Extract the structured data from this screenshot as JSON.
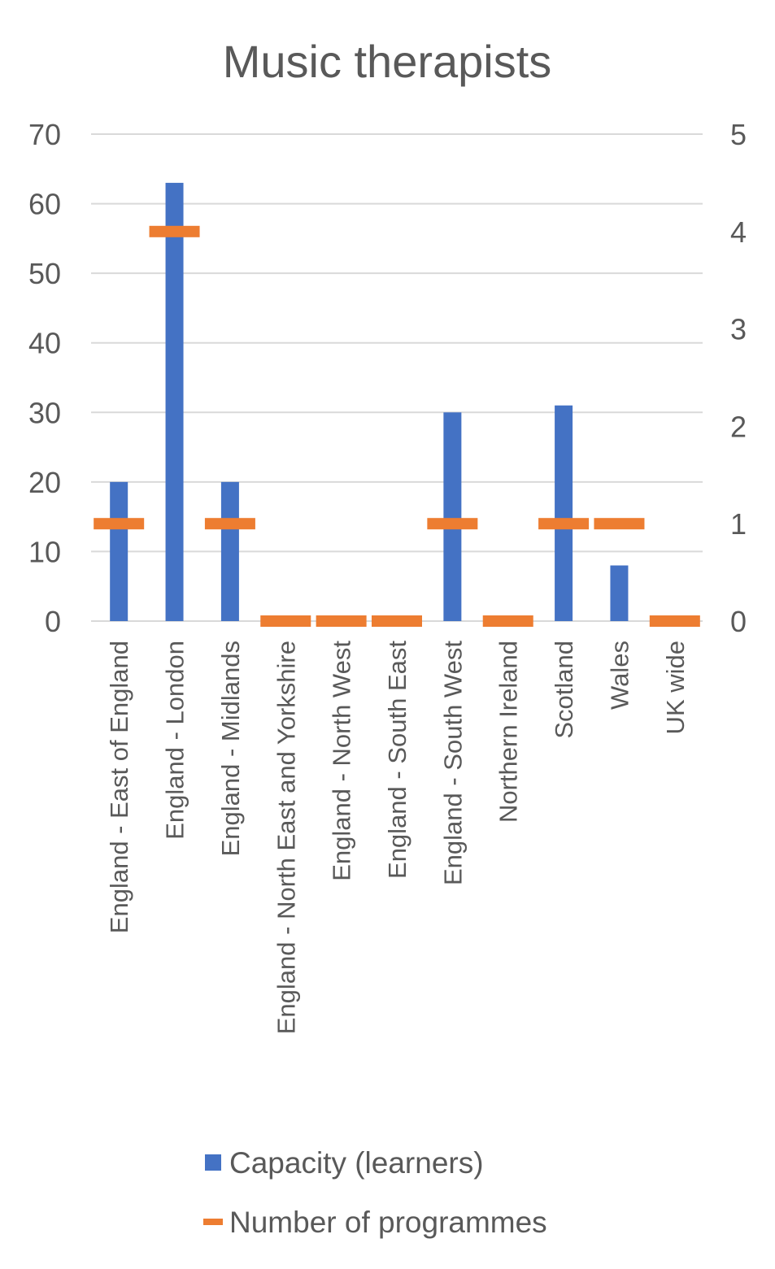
{
  "chart_data": {
    "type": "bar",
    "title": "Music therapists",
    "categories": [
      "England - East of England",
      "England - London",
      "England - Midlands",
      "England - North East and Yorkshire",
      "England - North West",
      "England - South East",
      "England - South West",
      "Northern Ireland",
      "Scotland",
      "Wales",
      "UK wide"
    ],
    "series": [
      {
        "name": "Capacity (learners)",
        "axis": "primary",
        "mark": "bar",
        "color": "#4472c4",
        "values": [
          20,
          63,
          20,
          0,
          0,
          0,
          30,
          0,
          31,
          8,
          0
        ]
      },
      {
        "name": "Number of programmes",
        "axis": "secondary",
        "mark": "dash",
        "color": "#ed7d31",
        "values": [
          1,
          4,
          1,
          0,
          0,
          0,
          1,
          0,
          1,
          1,
          0
        ]
      }
    ],
    "y_ticks": [
      "0",
      "10",
      "20",
      "30",
      "40",
      "50",
      "60",
      "70"
    ],
    "y2_ticks": [
      "0",
      "1",
      "2",
      "3",
      "4",
      "5"
    ],
    "ylim": [
      0,
      70
    ],
    "y2lim": [
      0,
      5
    ],
    "grid": true,
    "legend": "bottom"
  }
}
